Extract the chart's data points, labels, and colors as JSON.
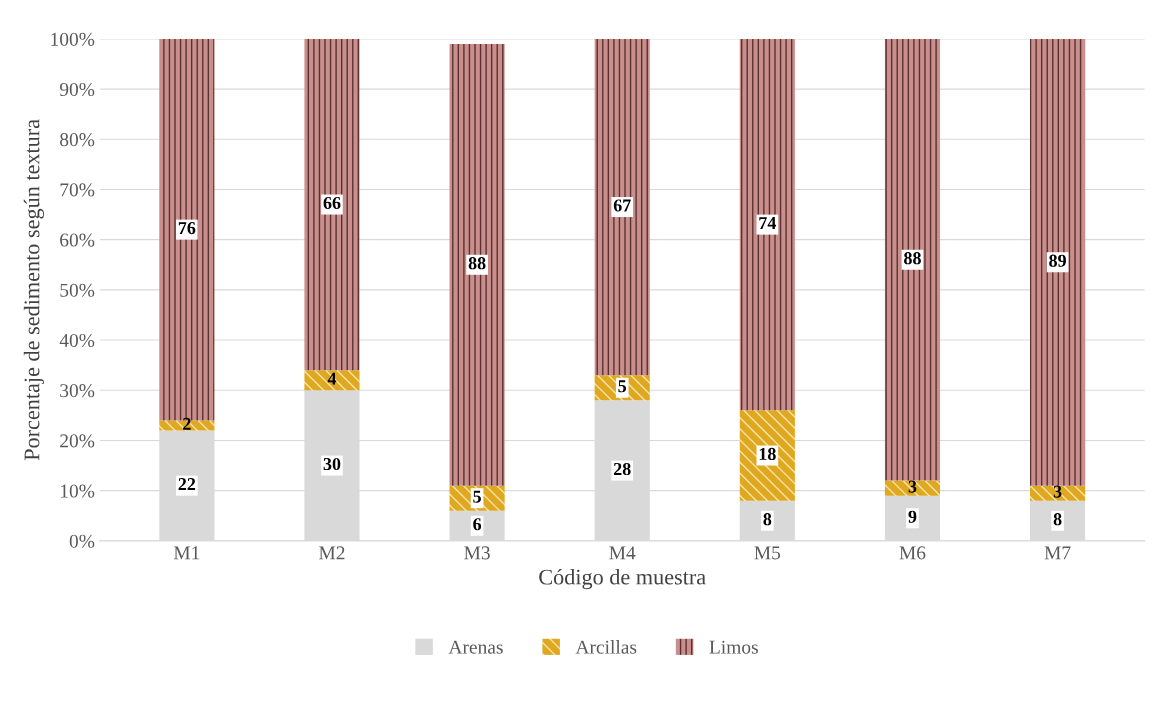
{
  "chart_data": {
    "type": "bar",
    "stacked": true,
    "xlabel": "Código de muestra",
    "ylabel": "Porcentaje de sedimento según textura",
    "categories": [
      "M1",
      "M2",
      "M3",
      "M4",
      "M5",
      "M6",
      "M7"
    ],
    "series": [
      {
        "name": "Arenas",
        "color": "#d9d9d9",
        "values": [
          22,
          30,
          6,
          28,
          8,
          9,
          8
        ]
      },
      {
        "name": "Arcillas",
        "color": "#e0a820",
        "values": [
          2,
          4,
          5,
          5,
          18,
          3,
          3
        ]
      },
      {
        "name": "Limos",
        "color": "#c98f8c",
        "values": [
          76,
          66,
          88,
          67,
          74,
          88,
          89
        ]
      }
    ],
    "ylim": [
      0,
      100
    ],
    "yticks": [
      {
        "value": 0,
        "label": "0%"
      },
      {
        "value": 10,
        "label": "10%"
      },
      {
        "value": 20,
        "label": "20%"
      },
      {
        "value": 30,
        "label": "30%"
      },
      {
        "value": 40,
        "label": "40%"
      },
      {
        "value": 50,
        "label": "50%"
      },
      {
        "value": 60,
        "label": "60%"
      },
      {
        "value": 70,
        "label": "70%"
      },
      {
        "value": 80,
        "label": "80%"
      },
      {
        "value": 90,
        "label": "90%"
      },
      {
        "value": 100,
        "label": "100%"
      }
    ],
    "grid": "y",
    "legend": "bottom",
    "data_labels": true
  }
}
